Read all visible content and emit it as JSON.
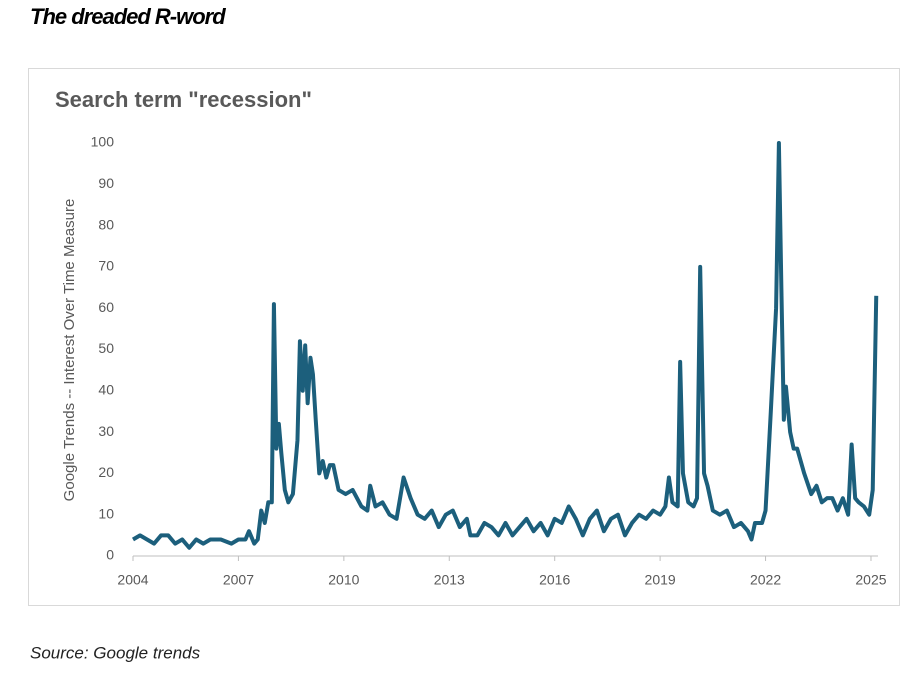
{
  "heading": "The dreaded R-word",
  "source": "Source: Google trends",
  "chart_data": {
    "type": "line",
    "title": "Search term \"recession\"",
    "y_label": "Google Trends -- Interest Over Time Measure",
    "xlim": [
      2004,
      2025.2
    ],
    "xticks": [
      2004,
      2007,
      2010,
      2013,
      2016,
      2019,
      2022,
      2025
    ],
    "ylim": [
      0,
      100
    ],
    "yticks": [
      0,
      10,
      20,
      30,
      40,
      50,
      60,
      70,
      80,
      90,
      100
    ],
    "grid": false,
    "series": [
      {
        "name": "recession",
        "color": "#1c5f7c",
        "x": [
          2004.0,
          2004.2,
          2004.4,
          2004.6,
          2004.8,
          2005.0,
          2005.2,
          2005.4,
          2005.6,
          2005.8,
          2006.0,
          2006.2,
          2006.5,
          2006.8,
          2007.0,
          2007.2,
          2007.3,
          2007.45,
          2007.55,
          2007.65,
          2007.75,
          2007.85,
          2007.95,
          2008.01,
          2008.08,
          2008.15,
          2008.22,
          2008.32,
          2008.42,
          2008.55,
          2008.68,
          2008.75,
          2008.83,
          2008.9,
          2008.97,
          2009.05,
          2009.12,
          2009.2,
          2009.3,
          2009.4,
          2009.5,
          2009.6,
          2009.7,
          2009.85,
          2010.05,
          2010.25,
          2010.5,
          2010.67,
          2010.75,
          2010.9,
          2011.1,
          2011.3,
          2011.5,
          2011.7,
          2011.9,
          2012.1,
          2012.3,
          2012.5,
          2012.7,
          2012.9,
          2013.1,
          2013.3,
          2013.5,
          2013.6,
          2013.8,
          2014.0,
          2014.2,
          2014.4,
          2014.6,
          2014.8,
          2015.0,
          2015.2,
          2015.4,
          2015.6,
          2015.8,
          2016.0,
          2016.2,
          2016.4,
          2016.6,
          2016.8,
          2017.0,
          2017.2,
          2017.4,
          2017.6,
          2017.8,
          2018.0,
          2018.2,
          2018.4,
          2018.6,
          2018.8,
          2019.0,
          2019.15,
          2019.25,
          2019.35,
          2019.5,
          2019.57,
          2019.65,
          2019.8,
          2019.95,
          2020.05,
          2020.14,
          2020.25,
          2020.35,
          2020.5,
          2020.7,
          2020.9,
          2021.1,
          2021.3,
          2021.5,
          2021.6,
          2021.7,
          2021.9,
          2022.0,
          2022.15,
          2022.3,
          2022.38,
          2022.45,
          2022.52,
          2022.58,
          2022.7,
          2022.8,
          2022.9,
          2023.1,
          2023.3,
          2023.45,
          2023.6,
          2023.75,
          2023.9,
          2024.05,
          2024.2,
          2024.35,
          2024.45,
          2024.55,
          2024.65,
          2024.8,
          2024.95,
          2025.05,
          2025.15
        ],
        "values": [
          4,
          5,
          4,
          3,
          5,
          5,
          3,
          4,
          2,
          4,
          3,
          4,
          4,
          3,
          4,
          4,
          6,
          3,
          4,
          11,
          8,
          13,
          13,
          61,
          26,
          32,
          25,
          16,
          13,
          15,
          28,
          52,
          40,
          51,
          37,
          48,
          44,
          33,
          20,
          23,
          19,
          22,
          22,
          16,
          15,
          16,
          12,
          11,
          17,
          12,
          13,
          10,
          9,
          19,
          14,
          10,
          9,
          11,
          7,
          10,
          11,
          7,
          9,
          5,
          5,
          8,
          7,
          5,
          8,
          5,
          7,
          9,
          6,
          8,
          5,
          9,
          8,
          12,
          9,
          5,
          9,
          11,
          6,
          9,
          10,
          5,
          8,
          10,
          9,
          11,
          10,
          12,
          19,
          13,
          12,
          47,
          20,
          13,
          12,
          14,
          70,
          20,
          17,
          11,
          10,
          11,
          7,
          8,
          6,
          4,
          8,
          8,
          11,
          35,
          60,
          100,
          65,
          33,
          41,
          30,
          26,
          26,
          20,
          15,
          17,
          13,
          14,
          14,
          11,
          14,
          10,
          27,
          14,
          13,
          12,
          10,
          16,
          63
        ]
      }
    ]
  }
}
